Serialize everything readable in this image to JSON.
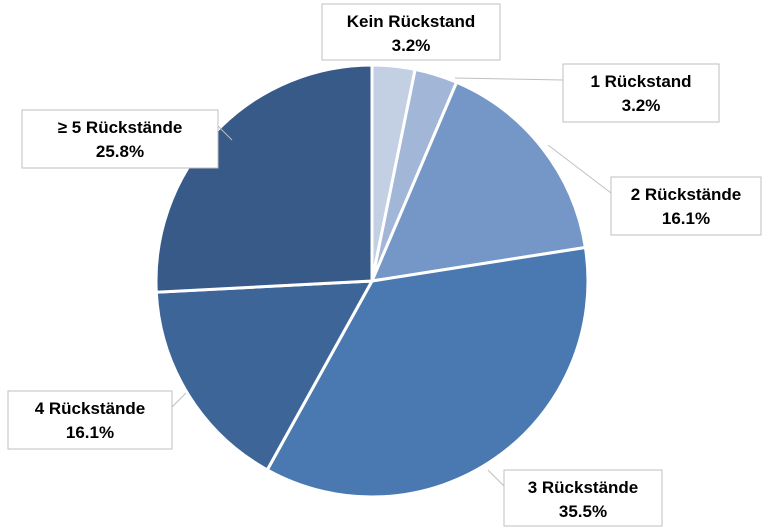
{
  "chart_data": {
    "type": "pie",
    "title": "",
    "start_angle_deg": 0,
    "direction": "clockwise",
    "slices": [
      {
        "label": "Kein Rückstand",
        "value_text": "3.2%",
        "value": 3.2,
        "color": "#c3cfe3"
      },
      {
        "label": "1 Rückstand",
        "value_text": "3.2%",
        "value": 3.2,
        "color": "#a2b6d8"
      },
      {
        "label": "2 Rückstände",
        "value_text": "16.1%",
        "value": 16.1,
        "color": "#7597c7"
      },
      {
        "label": "3 Rückstände",
        "value_text": "35.5%",
        "value": 35.5,
        "color": "#4a79b2"
      },
      {
        "label": "4 Rückstände",
        "value_text": "16.1%",
        "value": 16.1,
        "color": "#3e6598"
      },
      {
        "label": "≥ 5 Rückstände",
        "value_text": "25.8%",
        "value": 25.8,
        "color": "#375a89"
      }
    ]
  }
}
